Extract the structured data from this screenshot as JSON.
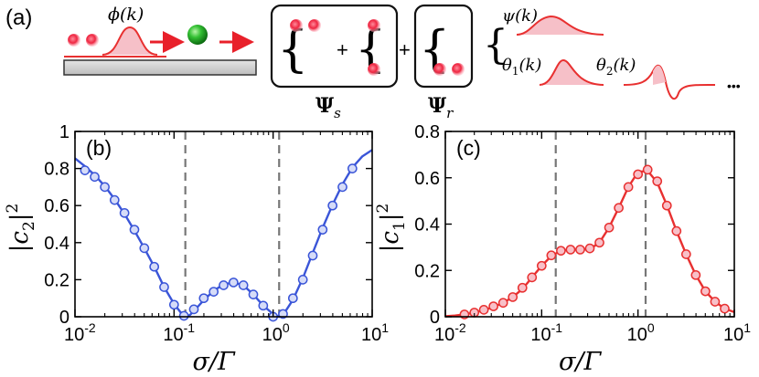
{
  "schematic": {
    "panel_label": "(a)",
    "phi_label": "ϕ(k)",
    "psi_s_label": "Ψ",
    "psi_s_sub": "s",
    "psi_r_label": "Ψ",
    "psi_r_sub": "r",
    "plus": "+",
    "psi_label": "ψ(k)",
    "theta1_label": "θ",
    "theta1_sub": "1",
    "theta1_arg": "(k)",
    "theta2_label": "θ",
    "theta2_sub": "2",
    "theta2_arg": "(k)",
    "ellipsis": "•••",
    "colors": {
      "photon": "#e8203a",
      "atom": "#22b022",
      "arrow": "#e8202a",
      "wave": "#e83030",
      "fill": "#f6c0c8"
    }
  },
  "chart_data": [
    {
      "type": "line",
      "panel_label": "(b)",
      "xlabel_main": "σ/Γ",
      "ylabel_main": "|c",
      "ylabel_sub": "2",
      "ylabel_tail": "|",
      "ylabel_sup": "2",
      "xscale": "log",
      "xlim": [
        0.01,
        10
      ],
      "ylim": [
        0,
        1
      ],
      "yticks": [
        "0",
        "0.2",
        "0.4",
        "0.6",
        "0.8",
        "1"
      ],
      "ytick_values": [
        0,
        0.2,
        0.4,
        0.6,
        0.8,
        1
      ],
      "xtick_base": "10",
      "xtick_exps": [
        "-2",
        "-1",
        "0",
        "1"
      ],
      "xtick_values": [
        0.01,
        0.1,
        1,
        10
      ],
      "vlines": [
        0.13,
        1.15
      ],
      "color": "#3a55d8",
      "line": {
        "x": [
          0.01,
          0.0126,
          0.0158,
          0.02,
          0.0251,
          0.0316,
          0.0398,
          0.0501,
          0.0631,
          0.0794,
          0.1,
          0.12,
          0.13,
          0.145,
          0.158,
          0.2,
          0.251,
          0.316,
          0.398,
          0.501,
          0.631,
          0.794,
          1.0,
          1.15,
          1.26,
          1.58,
          2.0,
          2.51,
          3.16,
          3.98,
          5.01,
          6.31,
          7.94,
          10
        ],
        "y": [
          0.855,
          0.812,
          0.765,
          0.705,
          0.635,
          0.555,
          0.465,
          0.37,
          0.27,
          0.16,
          0.07,
          0.015,
          0.0,
          0.01,
          0.03,
          0.09,
          0.14,
          0.175,
          0.185,
          0.17,
          0.12,
          0.06,
          0.015,
          0.0,
          0.01,
          0.09,
          0.21,
          0.345,
          0.48,
          0.605,
          0.715,
          0.805,
          0.865,
          0.9
        ]
      },
      "markers": {
        "x": [
          0.0126,
          0.0158,
          0.02,
          0.0251,
          0.0316,
          0.0398,
          0.0501,
          0.0631,
          0.0794,
          0.1,
          0.1259,
          0.1585,
          0.1995,
          0.2512,
          0.3162,
          0.3981,
          0.5012,
          0.631,
          0.7943,
          1.0,
          1.2589,
          1.5849,
          1.9953,
          2.5119,
          3.1623,
          3.9811,
          5.0119,
          6.3096
        ],
        "y": [
          0.79,
          0.755,
          0.7,
          0.63,
          0.56,
          0.47,
          0.37,
          0.27,
          0.16,
          0.065,
          0.005,
          0.04,
          0.1,
          0.135,
          0.17,
          0.185,
          0.17,
          0.12,
          0.06,
          0.0,
          0.015,
          0.1,
          0.2,
          0.33,
          0.47,
          0.6,
          0.7,
          0.8
        ]
      }
    },
    {
      "type": "line",
      "panel_label": "(c)",
      "xlabel_main": "σ/Γ",
      "ylabel_main": "|c",
      "ylabel_sub": "1",
      "ylabel_tail": "|",
      "ylabel_sup": "2",
      "xscale": "log",
      "xlim": [
        0.01,
        10
      ],
      "ylim": [
        0,
        0.8
      ],
      "yticks": [
        "0",
        "0.2",
        "0.4",
        "0.6",
        "0.8"
      ],
      "ytick_values": [
        0,
        0.2,
        0.4,
        0.6,
        0.8
      ],
      "xtick_base": "10",
      "xtick_exps": [
        "-2",
        "-1",
        "0",
        "1"
      ],
      "xtick_values": [
        0.01,
        0.1,
        1,
        10
      ],
      "vlines": [
        0.14,
        1.2
      ],
      "color": "#e83030",
      "line": {
        "x": [
          0.01,
          0.0126,
          0.0158,
          0.02,
          0.0251,
          0.0316,
          0.0398,
          0.0501,
          0.0631,
          0.0794,
          0.1,
          0.126,
          0.158,
          0.2,
          0.251,
          0.316,
          0.398,
          0.501,
          0.631,
          0.794,
          1.0,
          1.26,
          1.58,
          2.0,
          2.51,
          3.16,
          3.98,
          5.01,
          6.31,
          7.94,
          10
        ],
        "y": [
          0.002,
          0.005,
          0.01,
          0.018,
          0.028,
          0.042,
          0.06,
          0.085,
          0.12,
          0.17,
          0.22,
          0.262,
          0.285,
          0.29,
          0.29,
          0.292,
          0.32,
          0.385,
          0.47,
          0.56,
          0.625,
          0.63,
          0.58,
          0.48,
          0.37,
          0.27,
          0.18,
          0.11,
          0.065,
          0.035,
          0.02
        ]
      },
      "markers": {
        "x": [
          0.0158,
          0.02,
          0.0251,
          0.0316,
          0.0398,
          0.0501,
          0.0631,
          0.0794,
          0.1,
          0.1259,
          0.1585,
          0.1995,
          0.2512,
          0.3162,
          0.3981,
          0.5012,
          0.631,
          0.7943,
          1.0,
          1.2589,
          1.5849,
          1.9953,
          2.5119,
          3.1623,
          3.9811,
          5.0119,
          6.3096,
          7.9433
        ],
        "y": [
          0.01,
          0.018,
          0.03,
          0.045,
          0.06,
          0.085,
          0.125,
          0.17,
          0.22,
          0.265,
          0.285,
          0.29,
          0.29,
          0.295,
          0.32,
          0.385,
          0.47,
          0.56,
          0.615,
          0.635,
          0.585,
          0.48,
          0.37,
          0.27,
          0.18,
          0.11,
          0.065,
          0.035
        ]
      }
    }
  ]
}
